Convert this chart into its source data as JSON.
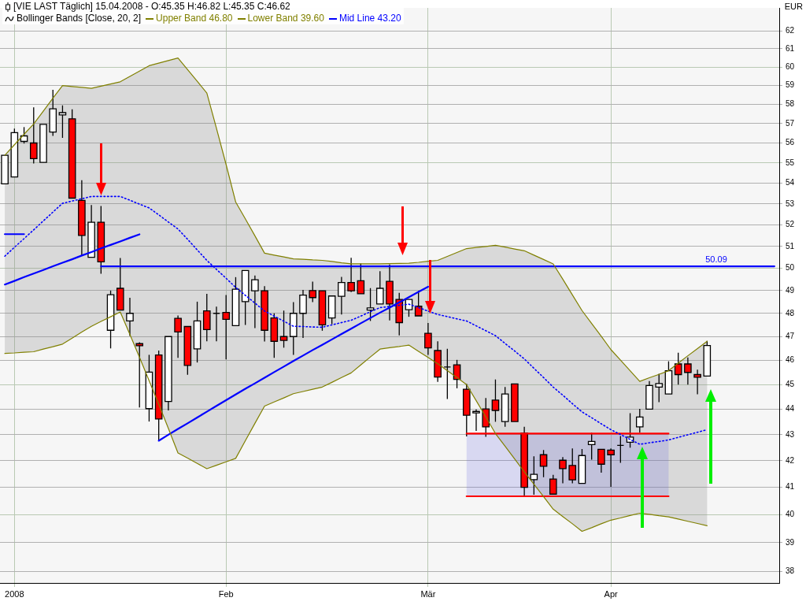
{
  "chart_data": {
    "type": "candlestick",
    "title": "[VIE LAST Täglich] 15.04.2008 - O:45.35 H:46.82 L:45.35 C:46.62",
    "legend_title": "Bollinger Bands [Close, 20, 2]",
    "ylabel": "EUR",
    "categories": [
      null,
      "2008",
      null,
      null,
      null,
      null,
      null,
      null,
      null,
      null,
      null,
      null,
      null,
      null,
      null,
      null,
      null,
      null,
      null,
      null,
      null,
      null,
      null,
      "Feb",
      null,
      null,
      null,
      null,
      null,
      null,
      null,
      null,
      null,
      null,
      null,
      null,
      null,
      null,
      null,
      null,
      null,
      null,
      null,
      null,
      "Mär",
      null,
      null,
      null,
      null,
      null,
      null,
      null,
      null,
      null,
      null,
      null,
      null,
      null,
      null,
      null,
      null,
      null,
      null,
      "Apr",
      null,
      null,
      null,
      null,
      null,
      null,
      null,
      null,
      null,
      null,
      null,
      null,
      null,
      null,
      null,
      null,
      null
    ],
    "ohlc": [
      [
        53.97,
        55.39,
        53.97,
        55.39
      ],
      [
        54.31,
        56.74,
        54.31,
        56.54
      ],
      [
        56.09,
        56.82,
        55.98,
        56.37
      ],
      [
        56.01,
        57.85,
        54.98,
        55.22
      ],
      [
        55.03,
        56.96,
        55.03,
        56.96
      ],
      [
        56.57,
        58.77,
        56.37,
        57.77
      ],
      [
        57.45,
        57.95,
        56.27,
        57.57
      ],
      [
        57.25,
        57.74,
        53.28,
        53.28
      ],
      [
        53.17,
        54.15,
        50.57,
        51.51
      ],
      [
        50.5,
        52.95,
        50.5,
        52.13
      ],
      [
        52.13,
        52.9,
        49.75,
        50.29
      ],
      [
        47.27,
        49.0,
        46.5,
        48.82
      ],
      [
        49.1,
        50.47,
        48.14,
        48.14
      ],
      [
        47.67,
        48.68,
        47.03,
        48.0
      ],
      [
        46.7,
        46.76,
        44.08,
        46.61
      ],
      [
        44.03,
        46.23,
        43.52,
        45.51
      ],
      [
        46.22,
        46.41,
        42.76,
        43.62
      ],
      [
        44.32,
        47.0,
        43.96,
        47.0
      ],
      [
        47.78,
        47.91,
        46.1,
        47.2
      ],
      [
        47.43,
        47.43,
        45.4,
        45.79
      ],
      [
        46.48,
        48.51,
        45.91,
        47.67
      ],
      [
        48.11,
        48.86,
        46.8,
        47.3
      ],
      [
        48.0,
        48.29,
        46.8,
        48.0
      ],
      [
        48.04,
        48.8,
        46.04,
        47.74
      ],
      [
        47.47,
        49.6,
        47.47,
        49.06
      ],
      [
        48.51,
        49.9,
        47.5,
        49.9
      ],
      [
        48.99,
        49.67,
        47.36,
        49.48
      ],
      [
        48.99,
        49.2,
        46.79,
        47.27
      ],
      [
        47.8,
        48.0,
        46.1,
        46.8
      ],
      [
        47.0,
        48.12,
        46.53,
        46.84
      ],
      [
        47.0,
        48.49,
        46.23,
        48.0
      ],
      [
        48.0,
        49.03,
        46.94,
        48.8
      ],
      [
        49.0,
        49.4,
        48.49,
        48.69
      ],
      [
        48.99,
        48.99,
        47.25,
        47.5
      ],
      [
        47.8,
        48.76,
        47.53,
        48.76
      ],
      [
        48.75,
        49.61,
        47.95,
        49.36
      ],
      [
        49.36,
        50.48,
        48.93,
        48.99
      ],
      [
        49.44,
        50.22,
        48.86,
        48.86
      ],
      [
        48.14,
        49.11,
        47.67,
        48.24
      ],
      [
        48.41,
        49.87,
        48.41,
        49.1
      ],
      [
        49.41,
        50.17,
        47.69,
        48.41
      ],
      [
        48.61,
        48.9,
        47.05,
        47.6
      ],
      [
        48.16,
        48.61,
        47.85,
        48.61
      ],
      [
        48.31,
        48.99,
        47.89,
        47.89
      ],
      [
        47.14,
        47.58,
        46.23,
        46.52
      ],
      [
        46.41,
        46.8,
        45.11,
        45.31
      ],
      [
        45.72,
        46.48,
        44.42,
        45.72
      ],
      [
        45.81,
        46.02,
        44.85,
        45.21
      ],
      [
        44.81,
        45.03,
        42.94,
        43.77
      ],
      [
        43.86,
        44.0,
        43.15,
        43.92
      ],
      [
        44.02,
        44.46,
        42.92,
        43.31
      ],
      [
        44.37,
        45.21,
        43.51,
        43.96
      ],
      [
        43.52,
        44.9,
        43.31,
        44.62
      ],
      [
        45.03,
        45.03,
        43.52,
        43.52
      ],
      [
        43.07,
        43.31,
        40.64,
        41.0
      ],
      [
        41.29,
        42.17,
        40.73,
        41.49
      ],
      [
        42.23,
        42.41,
        41.38,
        41.79
      ],
      [
        41.31,
        41.47,
        40.75,
        40.75
      ],
      [
        42.02,
        42.14,
        41.15,
        41.7
      ],
      [
        41.82,
        42.47,
        41.15,
        41.28
      ],
      [
        41.15,
        42.45,
        41.15,
        42.2
      ],
      [
        42.62,
        43.08,
        42.04,
        42.74
      ],
      [
        42.44,
        42.44,
        41.55,
        41.87
      ],
      [
        42.41,
        42.47,
        41.02,
        42.23
      ],
      [
        42.59,
        42.95,
        41.92,
        42.59
      ],
      [
        42.71,
        43.85,
        42.5,
        42.91
      ],
      [
        43.31,
        44.02,
        43.09,
        43.7
      ],
      [
        44.01,
        45.14,
        44.01,
        44.96
      ],
      [
        44.9,
        45.44,
        44.29,
        45.04
      ],
      [
        44.62,
        45.96,
        44.62,
        45.57
      ],
      [
        45.85,
        46.32,
        45.0,
        45.41
      ],
      [
        45.85,
        46.12,
        45.0,
        45.5
      ],
      [
        45.41,
        45.61,
        44.61,
        45.3
      ],
      [
        45.35,
        46.82,
        45.35,
        46.62
      ],
      null,
      null,
      null,
      null,
      null,
      null,
      null
    ],
    "colors": [
      "#ffffff",
      "#ffffff",
      "#ffffff",
      "#ff0000",
      "#ffffff",
      "#ffffff",
      "#ffffff",
      "#ff0000",
      "#ff0000",
      "#ffffff",
      "#ff0000",
      "#ffffff",
      "#ff0000",
      "#ffffff",
      "#ff0000",
      "#ffffff",
      "#ff0000",
      "#ffffff",
      "#ff0000",
      "#ff0000",
      "#ffffff",
      "#ff0000",
      "#000000",
      "#ff0000",
      "#ffffff",
      "#ffffff",
      "#ffffff",
      "#ff0000",
      "#ff0000",
      "#ff0000",
      "#ffffff",
      "#ffffff",
      "#ff0000",
      "#ff0000",
      "#ffffff",
      "#ffffff",
      "#ff0000",
      "#ff0000",
      "#ffffff",
      "#ffffff",
      "#ff0000",
      "#ff0000",
      "#ffffff",
      "#ff0000",
      "#ff0000",
      "#ff0000",
      "#000000",
      "#ff0000",
      "#ff0000",
      "#ffffff",
      "#ff0000",
      "#ff0000",
      "#ffffff",
      "#ff0000",
      "#ff0000",
      "#ffffff",
      "#ff0000",
      "#ff0000",
      "#ff0000",
      "#ff0000",
      "#ffffff",
      "#ffffff",
      "#ff0000",
      "#ff0000",
      "#000000",
      "#ffffff",
      "#ffffff",
      "#ffffff",
      "#ffffff",
      "#ffffff",
      "#ff0000",
      "#ff0000",
      "#ff0000",
      "#ffffff",
      null,
      null,
      null,
      null,
      null,
      null,
      null
    ],
    "series": [
      {
        "name": "Upper Band 46.80",
        "type": "line",
        "color": "#808000",
        "values": [
          55.39,
          55.92,
          56.45,
          56.98,
          57.65,
          58.33,
          59.0,
          58.95,
          58.9,
          58.85,
          58.97,
          59.08,
          59.2,
          59.49,
          59.78,
          60.07,
          60.21,
          60.35,
          60.49,
          59.86,
          59.23,
          58.6,
          56.76,
          54.93,
          53.09,
          52.29,
          51.49,
          50.69,
          50.6,
          50.52,
          50.43,
          50.41,
          50.38,
          50.36,
          50.31,
          50.25,
          50.2,
          50.2,
          50.2,
          50.2,
          50.21,
          50.22,
          50.23,
          50.27,
          50.32,
          50.36,
          50.54,
          50.72,
          50.9,
          50.95,
          51.0,
          51.05,
          50.97,
          50.88,
          50.8,
          50.6,
          50.4,
          50.2,
          49.51,
          48.81,
          48.12,
          47.56,
          47.01,
          46.45,
          46.01,
          45.57,
          45.13,
          45.28,
          45.42,
          45.57,
          45.88,
          46.19,
          46.49,
          46.8,
          null,
          null,
          null,
          null,
          null,
          null,
          null
        ]
      },
      {
        "name": "Lower Band 39.60",
        "type": "line",
        "color": "#808000",
        "values": [
          46.29,
          46.31,
          46.34,
          46.36,
          46.47,
          46.57,
          46.68,
          46.93,
          47.19,
          47.44,
          47.65,
          47.85,
          48.06,
          47.09,
          46.13,
          45.16,
          44.21,
          43.25,
          42.3,
          42.1,
          41.9,
          41.7,
          41.83,
          41.96,
          42.09,
          42.77,
          43.45,
          44.13,
          44.3,
          44.46,
          44.63,
          44.72,
          44.81,
          44.9,
          45.09,
          45.29,
          45.48,
          45.81,
          46.14,
          46.47,
          46.53,
          46.58,
          46.64,
          46.38,
          46.12,
          45.86,
          45.57,
          45.29,
          45.0,
          44.35,
          43.7,
          43.05,
          42.56,
          42.07,
          41.58,
          41.12,
          40.66,
          40.2,
          39.93,
          39.67,
          39.4,
          39.53,
          39.67,
          39.8,
          39.88,
          39.97,
          40.05,
          40.01,
          39.96,
          39.92,
          39.84,
          39.76,
          39.68,
          39.6,
          null,
          null,
          null,
          null,
          null,
          null,
          null
        ]
      },
      {
        "name": "Mid Line 43.20",
        "type": "line",
        "color": "#0000ff",
        "line_style": "dotted",
        "upper": [
          55.39,
          55.92,
          56.45,
          56.98,
          57.65,
          58.33,
          59.0,
          58.95,
          58.9,
          58.85,
          58.97,
          59.08,
          59.2,
          59.49,
          59.78,
          60.07,
          60.21,
          60.35,
          60.49,
          59.86,
          59.23,
          58.6,
          56.76,
          54.93,
          53.09,
          52.29,
          51.49,
          50.69,
          50.6,
          50.52,
          50.43,
          50.41,
          50.38,
          50.36,
          50.31,
          50.25,
          50.2,
          50.2,
          50.2,
          50.2,
          50.21,
          50.22,
          50.23,
          50.27,
          50.32,
          50.36,
          50.54,
          50.72,
          50.9,
          50.95,
          51.0,
          51.05,
          50.97,
          50.88,
          50.8,
          50.6,
          50.4,
          50.2,
          49.51,
          48.81,
          48.12,
          47.56,
          47.01,
          46.45,
          46.01,
          45.57,
          45.13,
          45.28,
          45.42,
          45.57,
          45.88,
          46.19,
          46.49,
          46.8,
          null,
          null,
          null,
          null,
          null,
          null,
          null
        ],
        "lower": [
          46.29,
          46.31,
          46.34,
          46.36,
          46.47,
          46.57,
          46.68,
          46.93,
          47.19,
          47.44,
          47.65,
          47.85,
          48.06,
          47.09,
          46.13,
          45.16,
          44.21,
          43.25,
          42.3,
          42.1,
          41.9,
          41.7,
          41.83,
          41.96,
          42.09,
          42.77,
          43.45,
          44.13,
          44.3,
          44.46,
          44.63,
          44.72,
          44.81,
          44.9,
          45.09,
          45.29,
          45.48,
          45.81,
          46.14,
          46.47,
          46.53,
          46.58,
          46.64,
          46.38,
          46.12,
          45.86,
          45.57,
          45.29,
          45.0,
          44.35,
          43.7,
          43.05,
          42.56,
          42.07,
          41.58,
          41.12,
          40.66,
          40.2,
          39.93,
          39.67,
          39.4,
          39.53,
          39.67,
          39.8,
          39.88,
          39.97,
          40.05,
          40.01,
          39.96,
          39.92,
          39.84,
          39.76,
          39.68,
          39.6,
          null,
          null,
          null,
          null,
          null,
          null,
          null
        ],
        "values": [
          50.55,
          50.96,
          51.36,
          51.77,
          52.19,
          52.61,
          53.03,
          53.14,
          53.25,
          53.36,
          53.36,
          53.36,
          53.36,
          53.18,
          52.99,
          52.81,
          52.48,
          52.14,
          51.81,
          51.33,
          50.84,
          50.36,
          49.95,
          49.55,
          49.14,
          48.79,
          48.45,
          48.1,
          47.88,
          47.66,
          47.44,
          47.43,
          47.41,
          47.4,
          47.5,
          47.6,
          47.7,
          47.88,
          48.07,
          48.25,
          48.3,
          48.35,
          48.4,
          48.25,
          48.1,
          47.95,
          47.86,
          47.76,
          47.67,
          47.46,
          47.25,
          47.04,
          46.71,
          46.39,
          46.06,
          45.67,
          45.29,
          44.9,
          44.57,
          44.23,
          43.9,
          43.67,
          43.43,
          43.2,
          43.01,
          42.82,
          42.63,
          42.69,
          42.74,
          42.8,
          42.9,
          43.0,
          43.1,
          43.2,
          null,
          null,
          null,
          null,
          null,
          null,
          null
        ]
      },
      {
        "type": "line",
        "color": "#ff0000",
        "upper": [
          null,
          null,
          null,
          null,
          null,
          null,
          null,
          null,
          null,
          null,
          null,
          null,
          null,
          null,
          null,
          null,
          null,
          null,
          null,
          null,
          null,
          null,
          null,
          null,
          null,
          null,
          null,
          null,
          null,
          null,
          null,
          null,
          null,
          null,
          null,
          null,
          null,
          null,
          null,
          null,
          null,
          null,
          null,
          null,
          null,
          null,
          null,
          null,
          43.05,
          43.05,
          43.05,
          43.05,
          43.05,
          43.05,
          43.05,
          43.05,
          43.05,
          43.05,
          43.05,
          43.05,
          43.05,
          43.05,
          43.05,
          43.05,
          43.05,
          43.05,
          43.05,
          43.05,
          43.05,
          43.05,
          null,
          null,
          null,
          null,
          null,
          null,
          null,
          null,
          null,
          null,
          null
        ],
        "lower": [
          null,
          null,
          null,
          null,
          null,
          null,
          null,
          null,
          null,
          null,
          null,
          null,
          null,
          null,
          null,
          null,
          null,
          null,
          null,
          null,
          null,
          null,
          null,
          null,
          null,
          null,
          null,
          null,
          null,
          null,
          null,
          null,
          null,
          null,
          null,
          null,
          null,
          null,
          null,
          null,
          null,
          null,
          null,
          null,
          null,
          null,
          null,
          null,
          40.67,
          40.67,
          40.67,
          40.67,
          40.67,
          40.67,
          40.67,
          40.67,
          40.67,
          40.67,
          40.67,
          40.67,
          40.67,
          40.67,
          40.67,
          40.67,
          40.67,
          40.67,
          40.67,
          40.67,
          40.67,
          40.67,
          null,
          null,
          null,
          null,
          null,
          null,
          null,
          null,
          null,
          null,
          null
        ],
        "values": [
          null,
          null,
          null,
          null,
          null,
          null,
          null,
          null,
          null,
          null,
          null,
          null,
          null,
          null,
          null,
          null,
          null,
          null,
          null,
          null,
          null,
          null,
          null,
          null,
          null,
          null,
          null,
          null,
          null,
          null,
          null,
          null,
          null,
          null,
          null,
          null,
          null,
          null,
          null,
          null,
          null,
          null,
          null,
          null,
          null,
          null,
          null,
          null,
          43.05,
          43.05,
          43.05,
          43.05,
          43.05,
          43.05,
          43.05,
          43.05,
          43.05,
          43.05,
          43.05,
          43.05,
          43.05,
          43.05,
          43.05,
          43.05,
          43.05,
          43.05,
          43.05,
          43.05,
          43.05,
          43.05,
          null,
          null,
          null,
          null,
          null,
          null,
          null,
          null,
          null,
          null,
          null
        ]
      },
      {
        "type": "line",
        "color": "#ff0000",
        "values": [
          null,
          null,
          null,
          null,
          null,
          null,
          null,
          null,
          null,
          null,
          null,
          null,
          null,
          null,
          null,
          null,
          null,
          null,
          null,
          null,
          null,
          null,
          null,
          null,
          null,
          null,
          null,
          null,
          null,
          null,
          null,
          null,
          null,
          null,
          null,
          null,
          null,
          null,
          null,
          null,
          null,
          null,
          null,
          null,
          null,
          null,
          null,
          null,
          40.67,
          40.67,
          40.67,
          40.67,
          40.67,
          40.67,
          40.67,
          40.67,
          40.67,
          40.67,
          40.67,
          40.67,
          40.67,
          40.67,
          40.67,
          40.67,
          40.67,
          40.67,
          40.67,
          40.67,
          40.67,
          40.67,
          null,
          null,
          null,
          null,
          null,
          null,
          null,
          null,
          null,
          null,
          null
        ]
      },
      {
        "type": "line",
        "color": "#0000ff",
        "values": [
          null,
          null,
          null,
          null,
          null,
          null,
          null,
          null,
          null,
          null,
          50.09,
          50.09,
          50.09,
          50.09,
          50.09,
          50.09,
          50.09,
          50.09,
          50.09,
          50.09,
          50.09,
          50.09,
          50.09,
          50.09,
          50.09,
          50.09,
          50.09,
          50.09,
          50.09,
          50.09,
          50.09,
          50.09,
          50.09,
          50.09,
          50.09,
          50.09,
          50.09,
          50.09,
          50.09,
          50.09,
          50.09,
          50.09,
          50.09,
          50.09,
          50.09,
          50.09,
          50.09,
          50.09,
          50.09,
          50.09,
          50.09,
          50.09,
          50.09,
          50.09,
          50.09,
          50.09,
          50.09,
          50.09,
          50.09,
          50.09,
          50.09,
          50.09,
          50.09,
          50.09,
          50.09,
          50.09,
          50.09,
          50.09,
          50.09,
          50.09,
          50.09,
          50.09,
          50.09,
          50.09,
          50.09,
          50.09,
          50.09,
          50.09,
          50.09,
          50.09,
          50.09
        ]
      },
      {
        "type": "line",
        "color": "#0000ff",
        "values": [
          51.57,
          51.57,
          51.57,
          null,
          null,
          null,
          null,
          null,
          null,
          null,
          null,
          null,
          null,
          null,
          null,
          null,
          null,
          null,
          null,
          null,
          null,
          null,
          null,
          null,
          null,
          null,
          null,
          null,
          null,
          null,
          null,
          null,
          null,
          null,
          null,
          null,
          null,
          null,
          null,
          null,
          null,
          null,
          null,
          null,
          null,
          null,
          null,
          null,
          null,
          null,
          null,
          null,
          null,
          null,
          null,
          null,
          null,
          null,
          null,
          null,
          null,
          null,
          null,
          null,
          null,
          null,
          null,
          null,
          null,
          null,
          null,
          null,
          null,
          null,
          null,
          null,
          null,
          null,
          null,
          null,
          null
        ]
      },
      {
        "type": "line",
        "color": "#0000ff",
        "values": [
          49.27,
          49.43,
          49.6,
          49.76,
          49.92,
          50.09,
          50.25,
          50.41,
          50.58,
          50.74,
          50.91,
          51.07,
          51.23,
          51.4,
          51.56,
          null,
          null,
          null,
          null,
          null,
          null,
          null,
          null,
          null,
          null,
          null,
          null,
          null,
          null,
          null,
          null,
          null,
          null,
          null,
          null,
          null,
          null,
          null,
          null,
          null,
          null,
          null,
          null,
          null,
          null,
          null,
          null,
          null,
          null,
          null,
          null,
          null,
          null,
          null,
          null,
          null,
          null,
          null,
          null,
          null,
          null,
          null,
          null,
          null,
          null,
          null,
          null,
          null,
          null,
          null,
          null,
          null,
          null,
          null,
          null,
          null,
          null,
          null,
          null,
          null,
          null
        ]
      },
      {
        "type": "line",
        "color": "#0000ff",
        "values": [
          null,
          null,
          null,
          null,
          null,
          null,
          null,
          null,
          null,
          null,
          null,
          null,
          null,
          null,
          null,
          null,
          42.77,
          43.0,
          43.23,
          43.45,
          43.68,
          43.91,
          44.14,
          44.37,
          44.6,
          44.83,
          45.05,
          45.28,
          45.51,
          45.74,
          45.97,
          46.2,
          46.43,
          46.65,
          46.88,
          47.11,
          47.34,
          47.57,
          47.8,
          48.03,
          48.25,
          48.48,
          48.71,
          48.94,
          49.17,
          null,
          null,
          null,
          null,
          null,
          null,
          null,
          null,
          null,
          null,
          null,
          null,
          null,
          null,
          null,
          null,
          null,
          null,
          null,
          null,
          null,
          null,
          null,
          null,
          null,
          null,
          null,
          null,
          null,
          null,
          null,
          null,
          null,
          null,
          null,
          null
        ]
      }
    ],
    "annotations": [
      {
        "text": "50.09",
        "y": 50.09
      }
    ],
    "ylim": [
      37.6,
      63.3
    ],
    "yticks": [
      38,
      39,
      40,
      41,
      42,
      43,
      44,
      45,
      46,
      47,
      48,
      49,
      50,
      51,
      52,
      53,
      54,
      55,
      56,
      57,
      58,
      59,
      60,
      61,
      62
    ],
    "log": "y",
    "grid": true,
    "legend": "top left"
  }
}
